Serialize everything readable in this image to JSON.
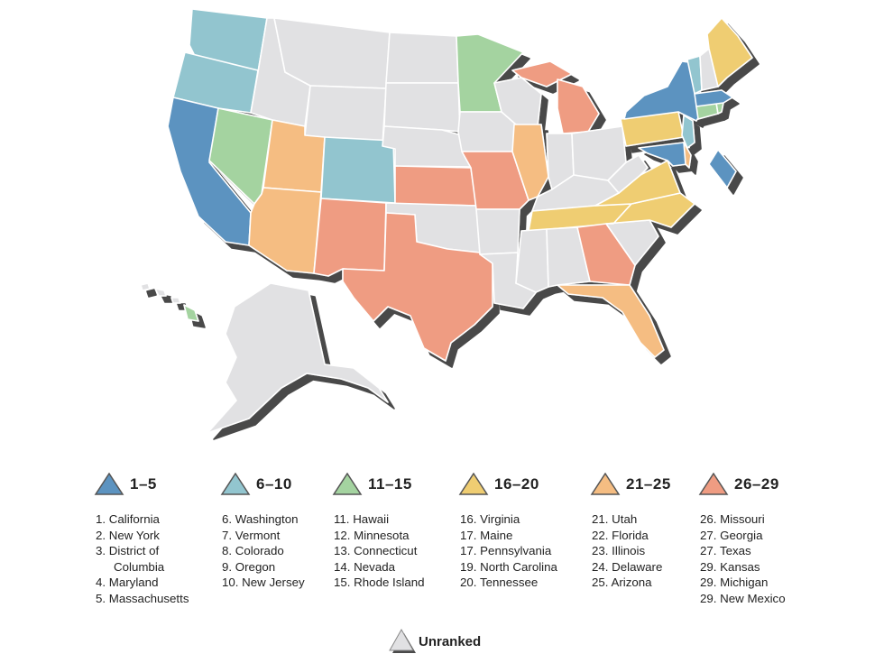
{
  "colors": {
    "tier1": "#5c93c0",
    "tier2": "#92c5cf",
    "tier3": "#a4d3a0",
    "tier4": "#efcd72",
    "tier5": "#f5bd82",
    "tier6": "#ef9c82",
    "unranked": "#e1e1e3",
    "shadow": "#4a4a4a"
  },
  "legend": [
    {
      "range": "1–5",
      "color_key": "tier1",
      "items": [
        "1. California",
        "2. New York",
        "3. District of",
        "Columbia",
        "4. Maryland",
        "5. Massachusetts"
      ]
    },
    {
      "range": "6–10",
      "color_key": "tier2",
      "items": [
        "6. Washington",
        "7.  Vermont",
        "8. Colorado",
        "9. Oregon",
        "10. New Jersey"
      ]
    },
    {
      "range": "11–15",
      "color_key": "tier3",
      "items": [
        "11. Hawaii",
        "12. Minnesota",
        "13. Connecticut",
        "14. Nevada",
        "15. Rhode Island"
      ]
    },
    {
      "range": "16–20",
      "color_key": "tier4",
      "items": [
        "16. Virginia",
        "17. Maine",
        "17. Pennsylvania",
        "19. North Carolina",
        "20. Tennessee"
      ]
    },
    {
      "range": "21–25",
      "color_key": "tier5",
      "items": [
        "21. Utah",
        "22. Florida",
        "23.  Illinois",
        "24. Delaware",
        "25. Arizona"
      ]
    },
    {
      "range": "26–29",
      "color_key": "tier6",
      "items": [
        "26. Missouri",
        "27. Georgia",
        "27. Texas",
        "29. Kansas",
        "29. Michigan",
        "29. New Mexico"
      ]
    }
  ],
  "unranked_label": "Unranked"
}
